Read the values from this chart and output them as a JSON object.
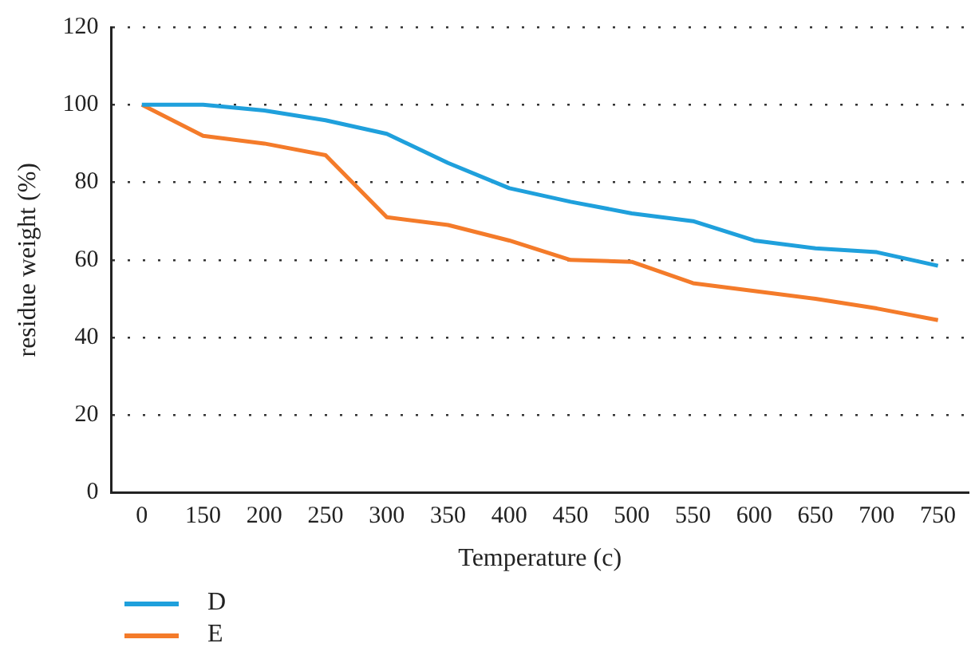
{
  "chart_data": {
    "type": "line",
    "xlabel": "Temperature (c)",
    "ylabel": "residue weight (%)",
    "categories": [
      "0",
      "150",
      "200",
      "250",
      "300",
      "350",
      "400",
      "450",
      "500",
      "550",
      "600",
      "650",
      "700",
      "750"
    ],
    "series": [
      {
        "name": "D",
        "color": "#1fa0dc",
        "values": [
          100,
          100,
          98.5,
          96,
          92.5,
          85,
          78.5,
          75,
          72,
          70,
          65,
          63,
          62,
          58.5
        ]
      },
      {
        "name": "E",
        "color": "#f47b2a",
        "values": [
          100,
          92,
          90,
          87,
          71,
          69,
          65,
          60,
          59.5,
          54,
          52,
          50,
          47.5,
          44.5
        ]
      }
    ],
    "ylim": [
      0,
      120
    ],
    "yticks": [
      0,
      20,
      40,
      60,
      80,
      100,
      120
    ],
    "grid": "y",
    "legend": "bottom left",
    "marker": "none",
    "line_style": "solid"
  }
}
